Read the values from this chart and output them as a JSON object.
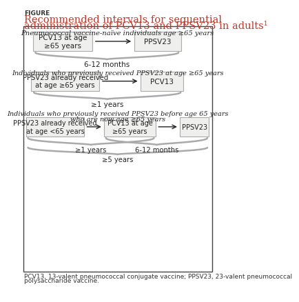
{
  "figure_label": "FIGURE",
  "title_line1": "Recommended intervals for sequential",
  "title_line2": "administration of PCV13 and PPSV23 in adults¹",
  "title_color": "#c0392b",
  "bg_color": "#ffffff",
  "box_fill": "#efefed",
  "box_edge": "#aaaaaa",
  "outer_border": "#444444",
  "section1_header": "Pneumococcal vaccine-naïve individuals age ≥65 years",
  "section1_box1": "PCV13 at age\n≥65 years",
  "section1_box2": "PPSV23",
  "section1_brace_label": "6-12 months",
  "section2_header": "Individuals who previously received PPSV23 at age ≥65 years",
  "section2_box1": "PPSV23 already received\nat age ≥65 years",
  "section2_box2": "PCV13",
  "section2_brace_label": "≥1 years",
  "section3_header_line1": "Individuals who previously received PPSV23 before age 65 years",
  "section3_header_line2": "who are now age ≥65 years",
  "section3_box1": "PPSV23 already received\nat age <65 years",
  "section3_box2": "PCV13 at age\n≥65 years",
  "section3_box3": "PPSV23",
  "section3_brace1_label": "≥1 years",
  "section3_brace2_label": "6-12 months",
  "section3_brace_outer_label": "≥5 years",
  "footnote_line1": "PCV13, 13-valent pneumococcal conjugate vaccine; PPSV23, 23-valent pneumococcal",
  "footnote_line2": "polysaccharide vaccine.",
  "brace_color": "#aaaaaa",
  "arrow_color": "#222222",
  "text_color": "#222222",
  "header_italic_color": "#222222"
}
